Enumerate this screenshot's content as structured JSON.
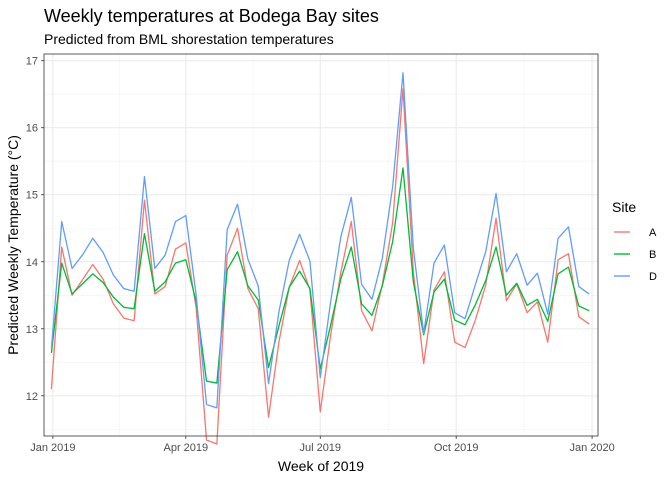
{
  "chart_data": {
    "type": "line",
    "title": "Weekly temperatures at Bodega Bay sites",
    "subtitle": "Predicted from BML shorestation temperatures",
    "xlabel": "Week of 2019",
    "ylabel": "Predicted Weekly Temperature (°C)",
    "ylim": [
      11.4,
      17.1
    ],
    "xlim": [
      "2018-12-26",
      "2020-01-05"
    ],
    "x_ticks": [
      {
        "date": "2019-01-01",
        "label": "Jan 2019"
      },
      {
        "date": "2019-04-01",
        "label": "Apr 2019"
      },
      {
        "date": "2019-07-01",
        "label": "Jul 2019"
      },
      {
        "date": "2019-10-01",
        "label": "Oct 2019"
      },
      {
        "date": "2020-01-01",
        "label": "Jan 2020"
      }
    ],
    "y_ticks": [
      12,
      13,
      14,
      15,
      16,
      17
    ],
    "grid": true,
    "legend_title": "Site",
    "legend_position": "right",
    "x": [
      "2018-12-31",
      "2019-01-07",
      "2019-01-14",
      "2019-01-21",
      "2019-01-28",
      "2019-02-04",
      "2019-02-11",
      "2019-02-18",
      "2019-02-25",
      "2019-03-04",
      "2019-03-11",
      "2019-03-18",
      "2019-03-25",
      "2019-04-01",
      "2019-04-08",
      "2019-04-15",
      "2019-04-22",
      "2019-04-29",
      "2019-05-06",
      "2019-05-13",
      "2019-05-20",
      "2019-05-27",
      "2019-06-03",
      "2019-06-10",
      "2019-06-17",
      "2019-06-24",
      "2019-07-01",
      "2019-07-08",
      "2019-07-15",
      "2019-07-22",
      "2019-07-29",
      "2019-08-05",
      "2019-08-12",
      "2019-08-19",
      "2019-08-26",
      "2019-09-02",
      "2019-09-09",
      "2019-09-16",
      "2019-09-23",
      "2019-09-30",
      "2019-10-07",
      "2019-10-14",
      "2019-10-21",
      "2019-10-28",
      "2019-11-04",
      "2019-11-11",
      "2019-11-18",
      "2019-11-25",
      "2019-12-02",
      "2019-12-09",
      "2019-12-16",
      "2019-12-23",
      "2019-12-30"
    ],
    "series": [
      {
        "name": "A",
        "color": "#F8766D",
        "values": [
          12.1,
          14.22,
          13.5,
          13.73,
          13.96,
          13.74,
          13.37,
          13.16,
          13.12,
          14.92,
          13.52,
          13.63,
          14.19,
          14.28,
          13.31,
          11.34,
          11.28,
          14.1,
          14.5,
          13.6,
          13.3,
          11.68,
          12.8,
          13.62,
          14.02,
          13.58,
          11.76,
          12.9,
          13.85,
          14.6,
          13.27,
          12.97,
          13.66,
          14.58,
          16.58,
          13.85,
          12.48,
          13.58,
          13.85,
          12.8,
          12.72,
          13.13,
          13.65,
          14.65,
          13.42,
          13.67,
          13.24,
          13.4,
          12.8,
          14.03,
          14.12,
          13.18,
          13.07
        ]
      },
      {
        "name": "B",
        "color": "#00BA38",
        "values": [
          12.64,
          13.98,
          13.52,
          13.67,
          13.82,
          13.69,
          13.47,
          13.32,
          13.3,
          14.42,
          13.56,
          13.7,
          13.98,
          14.03,
          13.4,
          12.22,
          12.19,
          13.88,
          14.15,
          13.64,
          13.43,
          12.42,
          13.04,
          13.62,
          13.86,
          13.6,
          12.4,
          13.05,
          13.75,
          14.22,
          13.37,
          13.2,
          13.64,
          14.3,
          15.4,
          13.7,
          12.91,
          13.55,
          13.74,
          13.13,
          13.06,
          13.36,
          13.72,
          14.22,
          13.5,
          13.68,
          13.35,
          13.44,
          13.11,
          13.82,
          13.92,
          13.34,
          13.27
        ]
      },
      {
        "name": "D",
        "color": "#619CFF",
        "values": [
          12.7,
          14.6,
          13.9,
          14.1,
          14.35,
          14.14,
          13.8,
          13.6,
          13.56,
          15.27,
          13.9,
          14.1,
          14.6,
          14.69,
          13.5,
          11.87,
          11.82,
          14.48,
          14.86,
          14.04,
          13.64,
          12.18,
          13.25,
          14.02,
          14.41,
          14.01,
          12.27,
          13.4,
          14.38,
          14.96,
          13.66,
          13.44,
          14.05,
          15.12,
          16.82,
          14.2,
          12.93,
          13.98,
          14.25,
          13.24,
          13.15,
          13.66,
          14.15,
          15.02,
          13.85,
          14.12,
          13.65,
          13.83,
          13.22,
          14.35,
          14.52,
          13.63,
          13.52
        ]
      }
    ]
  }
}
